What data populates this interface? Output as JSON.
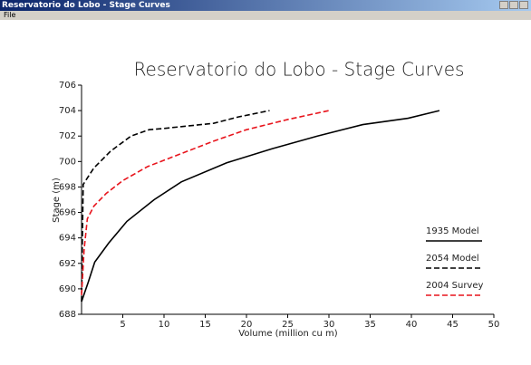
{
  "window": {
    "title": "Reservatorio do Lobo - Stage Curves",
    "menu": [
      "File"
    ]
  },
  "chart_data": {
    "type": "line",
    "title": "Reservatorio do Lobo - Stage Curves",
    "x_label": "Volume (million cu m)",
    "y_label": "Stage (m)",
    "xlim": [
      0,
      50
    ],
    "xticks": [
      5,
      10,
      15,
      20,
      25,
      30,
      35,
      40,
      45,
      50
    ],
    "ylim": [
      688,
      706
    ],
    "yticks": [
      688,
      690,
      692,
      694,
      696,
      698,
      700,
      702,
      704,
      706
    ],
    "grid": false,
    "legend": "lower right",
    "series": [
      {
        "name": "1935 Model",
        "color": "#000000",
        "dash": "solid",
        "x": [
          0,
          0.8,
          1.6,
          3.3,
          5.5,
          8.8,
          12.1,
          17.6,
          23.1,
          28.6,
          34.1,
          39.6,
          43.4
        ],
        "values": [
          689,
          690.5,
          692.1,
          693.6,
          695.3,
          697,
          698.4,
          699.9,
          701,
          702,
          702.9,
          703.4,
          704
        ]
      },
      {
        "name": "2054 Model",
        "color": "#000000",
        "dash": "dashed",
        "x": [
          0,
          0.1,
          0.2,
          1.5,
          3.5,
          6,
          8.2,
          10,
          13,
          16,
          19,
          22.8
        ],
        "values": [
          689,
          694,
          698.2,
          699.5,
          700.8,
          702,
          702.5,
          702.6,
          702.8,
          703,
          703.5,
          704
        ]
      },
      {
        "name": "2004 Survey",
        "color": "#e8141c",
        "dash": "dashed",
        "x": [
          0,
          0.3,
          0.7,
          1.5,
          3,
          5,
          8,
          12,
          16,
          20,
          25,
          30
        ],
        "values": [
          689.5,
          693,
          695.5,
          696.5,
          697.5,
          698.5,
          699.6,
          700.6,
          701.6,
          702.5,
          703.3,
          704
        ]
      }
    ]
  }
}
